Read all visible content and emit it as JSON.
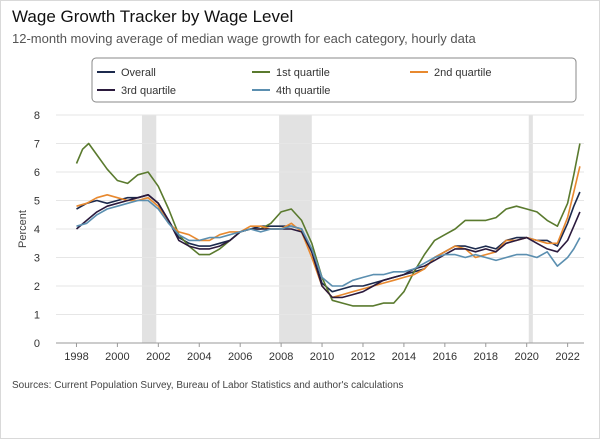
{
  "title": "Wage Growth Tracker by Wage Level",
  "subtitle": "12-month moving average of median wage growth for each category, hourly data",
  "source": "Sources: Current Population Survey, Bureau of Labor Statistics and author's calculations",
  "chart_data": {
    "type": "line",
    "title": "Wage Growth Tracker by Wage Level",
    "ylabel": "Percent",
    "xlabel": "",
    "xlim": [
      1997.0,
      2022.8
    ],
    "ylim": [
      0,
      8
    ],
    "x_ticks": [
      1998,
      2000,
      2002,
      2004,
      2006,
      2008,
      2010,
      2012,
      2014,
      2016,
      2018,
      2020,
      2022
    ],
    "y_ticks": [
      0,
      1,
      2,
      3,
      4,
      5,
      6,
      7,
      8
    ],
    "grid": true,
    "legend_position": "top",
    "recessions": [
      [
        2001.2,
        2001.9
      ],
      [
        2007.9,
        2009.5
      ],
      [
        2020.1,
        2020.3
      ]
    ],
    "recession_color": "#e2e2e2",
    "series": [
      {
        "name": "Overall",
        "color": "#1c2a4d",
        "points": [
          [
            1998,
            4.7
          ],
          [
            1998.5,
            4.9
          ],
          [
            1999,
            5.0
          ],
          [
            1999.5,
            4.9
          ],
          [
            2000,
            5.0
          ],
          [
            2000.5,
            5.1
          ],
          [
            2001,
            5.1
          ],
          [
            2001.5,
            5.2
          ],
          [
            2002,
            4.9
          ],
          [
            2002.5,
            4.3
          ],
          [
            2003,
            3.7
          ],
          [
            2003.5,
            3.5
          ],
          [
            2004,
            3.4
          ],
          [
            2004.5,
            3.4
          ],
          [
            2005,
            3.5
          ],
          [
            2005.5,
            3.6
          ],
          [
            2006,
            3.9
          ],
          [
            2006.5,
            4.0
          ],
          [
            2007,
            4.1
          ],
          [
            2007.5,
            4.1
          ],
          [
            2008,
            4.1
          ],
          [
            2008.5,
            4.1
          ],
          [
            2009,
            4.0
          ],
          [
            2009.5,
            3.2
          ],
          [
            2010,
            2.1
          ],
          [
            2010.5,
            1.8
          ],
          [
            2011,
            1.9
          ],
          [
            2011.5,
            2.0
          ],
          [
            2012,
            2.0
          ],
          [
            2012.5,
            2.1
          ],
          [
            2013,
            2.2
          ],
          [
            2013.5,
            2.3
          ],
          [
            2014,
            2.4
          ],
          [
            2014.5,
            2.5
          ],
          [
            2015,
            2.6
          ],
          [
            2015.5,
            3.0
          ],
          [
            2016,
            3.2
          ],
          [
            2016.5,
            3.4
          ],
          [
            2017,
            3.4
          ],
          [
            2017.5,
            3.3
          ],
          [
            2018,
            3.4
          ],
          [
            2018.5,
            3.3
          ],
          [
            2019,
            3.6
          ],
          [
            2019.5,
            3.7
          ],
          [
            2020,
            3.7
          ],
          [
            2020.5,
            3.6
          ],
          [
            2021,
            3.6
          ],
          [
            2021.5,
            3.4
          ],
          [
            2022,
            4.2
          ],
          [
            2022.3,
            4.8
          ],
          [
            2022.6,
            5.3
          ]
        ]
      },
      {
        "name": "1st quartile",
        "color": "#5a7a2e",
        "points": [
          [
            1998,
            6.3
          ],
          [
            1998.3,
            6.8
          ],
          [
            1998.6,
            7.0
          ],
          [
            1999,
            6.6
          ],
          [
            1999.5,
            6.1
          ],
          [
            2000,
            5.7
          ],
          [
            2000.5,
            5.6
          ],
          [
            2001,
            5.9
          ],
          [
            2001.5,
            6.0
          ],
          [
            2002,
            5.5
          ],
          [
            2002.5,
            4.7
          ],
          [
            2003,
            3.8
          ],
          [
            2003.5,
            3.4
          ],
          [
            2004,
            3.1
          ],
          [
            2004.5,
            3.1
          ],
          [
            2005,
            3.3
          ],
          [
            2005.5,
            3.6
          ],
          [
            2006,
            3.9
          ],
          [
            2006.5,
            4.0
          ],
          [
            2007,
            4.0
          ],
          [
            2007.5,
            4.2
          ],
          [
            2008,
            4.6
          ],
          [
            2008.5,
            4.7
          ],
          [
            2009,
            4.3
          ],
          [
            2009.5,
            3.5
          ],
          [
            2010,
            2.3
          ],
          [
            2010.5,
            1.5
          ],
          [
            2011,
            1.4
          ],
          [
            2011.5,
            1.3
          ],
          [
            2012,
            1.3
          ],
          [
            2012.5,
            1.3
          ],
          [
            2013,
            1.4
          ],
          [
            2013.5,
            1.4
          ],
          [
            2014,
            1.8
          ],
          [
            2014.5,
            2.5
          ],
          [
            2015,
            3.1
          ],
          [
            2015.5,
            3.6
          ],
          [
            2016,
            3.8
          ],
          [
            2016.5,
            4.0
          ],
          [
            2017,
            4.3
          ],
          [
            2017.5,
            4.3
          ],
          [
            2018,
            4.3
          ],
          [
            2018.5,
            4.4
          ],
          [
            2019,
            4.7
          ],
          [
            2019.5,
            4.8
          ],
          [
            2020,
            4.7
          ],
          [
            2020.5,
            4.6
          ],
          [
            2021,
            4.3
          ],
          [
            2021.5,
            4.1
          ],
          [
            2022,
            4.9
          ],
          [
            2022.3,
            5.9
          ],
          [
            2022.6,
            7.0
          ]
        ]
      },
      {
        "name": "2nd quartile",
        "color": "#e8892f",
        "points": [
          [
            1998,
            4.8
          ],
          [
            1998.5,
            4.9
          ],
          [
            1999,
            5.1
          ],
          [
            1999.5,
            5.2
          ],
          [
            2000,
            5.1
          ],
          [
            2000.5,
            5.0
          ],
          [
            2001,
            5.0
          ],
          [
            2001.5,
            5.1
          ],
          [
            2002,
            4.8
          ],
          [
            2002.5,
            4.2
          ],
          [
            2003,
            3.9
          ],
          [
            2003.5,
            3.8
          ],
          [
            2004,
            3.6
          ],
          [
            2004.5,
            3.6
          ],
          [
            2005,
            3.8
          ],
          [
            2005.5,
            3.9
          ],
          [
            2006,
            3.9
          ],
          [
            2006.5,
            4.1
          ],
          [
            2007,
            4.1
          ],
          [
            2007.5,
            4.0
          ],
          [
            2008,
            4.0
          ],
          [
            2008.5,
            4.2
          ],
          [
            2009,
            3.9
          ],
          [
            2009.5,
            3.0
          ],
          [
            2010,
            2.0
          ],
          [
            2010.5,
            1.6
          ],
          [
            2011,
            1.7
          ],
          [
            2011.5,
            1.8
          ],
          [
            2012,
            1.9
          ],
          [
            2012.5,
            2.0
          ],
          [
            2013,
            2.1
          ],
          [
            2013.5,
            2.2
          ],
          [
            2014,
            2.3
          ],
          [
            2014.5,
            2.4
          ],
          [
            2015,
            2.6
          ],
          [
            2015.5,
            3.0
          ],
          [
            2016,
            3.2
          ],
          [
            2016.5,
            3.4
          ],
          [
            2017,
            3.3
          ],
          [
            2017.5,
            3.0
          ],
          [
            2018,
            3.1
          ],
          [
            2018.5,
            3.2
          ],
          [
            2019,
            3.6
          ],
          [
            2019.5,
            3.6
          ],
          [
            2020,
            3.7
          ],
          [
            2020.5,
            3.6
          ],
          [
            2021,
            3.5
          ],
          [
            2021.5,
            3.5
          ],
          [
            2022,
            4.4
          ],
          [
            2022.3,
            5.3
          ],
          [
            2022.6,
            6.2
          ]
        ]
      },
      {
        "name": "3rd quartile",
        "color": "#2b1a3d",
        "points": [
          [
            1998,
            4.0
          ],
          [
            1998.5,
            4.3
          ],
          [
            1999,
            4.6
          ],
          [
            1999.5,
            4.8
          ],
          [
            2000,
            4.9
          ],
          [
            2000.5,
            5.0
          ],
          [
            2001,
            5.1
          ],
          [
            2001.5,
            5.2
          ],
          [
            2002,
            4.9
          ],
          [
            2002.5,
            4.3
          ],
          [
            2003,
            3.6
          ],
          [
            2003.5,
            3.4
          ],
          [
            2004,
            3.3
          ],
          [
            2004.5,
            3.3
          ],
          [
            2005,
            3.4
          ],
          [
            2005.5,
            3.6
          ],
          [
            2006,
            3.9
          ],
          [
            2006.5,
            4.0
          ],
          [
            2007,
            4.0
          ],
          [
            2007.5,
            4.0
          ],
          [
            2008,
            4.0
          ],
          [
            2008.5,
            4.0
          ],
          [
            2009,
            3.9
          ],
          [
            2009.5,
            3.2
          ],
          [
            2010,
            2.0
          ],
          [
            2010.5,
            1.6
          ],
          [
            2011,
            1.6
          ],
          [
            2011.5,
            1.7
          ],
          [
            2012,
            1.8
          ],
          [
            2012.5,
            2.0
          ],
          [
            2013,
            2.2
          ],
          [
            2013.5,
            2.3
          ],
          [
            2014,
            2.4
          ],
          [
            2014.5,
            2.6
          ],
          [
            2015,
            2.7
          ],
          [
            2015.5,
            2.9
          ],
          [
            2016,
            3.1
          ],
          [
            2016.5,
            3.3
          ],
          [
            2017,
            3.3
          ],
          [
            2017.5,
            3.2
          ],
          [
            2018,
            3.3
          ],
          [
            2018.5,
            3.2
          ],
          [
            2019,
            3.5
          ],
          [
            2019.5,
            3.6
          ],
          [
            2020,
            3.7
          ],
          [
            2020.5,
            3.5
          ],
          [
            2021,
            3.3
          ],
          [
            2021.5,
            3.2
          ],
          [
            2022,
            3.6
          ],
          [
            2022.3,
            4.1
          ],
          [
            2022.6,
            4.6
          ]
        ]
      },
      {
        "name": "4th quartile",
        "color": "#5b8fb0",
        "points": [
          [
            1998,
            4.1
          ],
          [
            1998.5,
            4.2
          ],
          [
            1999,
            4.5
          ],
          [
            1999.5,
            4.7
          ],
          [
            2000,
            4.8
          ],
          [
            2000.5,
            4.9
          ],
          [
            2001,
            5.0
          ],
          [
            2001.5,
            5.0
          ],
          [
            2002,
            4.7
          ],
          [
            2002.5,
            4.2
          ],
          [
            2003,
            3.8
          ],
          [
            2003.5,
            3.6
          ],
          [
            2004,
            3.6
          ],
          [
            2004.5,
            3.7
          ],
          [
            2005,
            3.7
          ],
          [
            2005.5,
            3.8
          ],
          [
            2006,
            3.9
          ],
          [
            2006.5,
            4.0
          ],
          [
            2007,
            3.9
          ],
          [
            2007.5,
            4.0
          ],
          [
            2008,
            4.0
          ],
          [
            2008.5,
            4.1
          ],
          [
            2009,
            4.0
          ],
          [
            2009.5,
            3.3
          ],
          [
            2010,
            2.3
          ],
          [
            2010.5,
            2.0
          ],
          [
            2011,
            2.0
          ],
          [
            2011.5,
            2.2
          ],
          [
            2012,
            2.3
          ],
          [
            2012.5,
            2.4
          ],
          [
            2013,
            2.4
          ],
          [
            2013.5,
            2.5
          ],
          [
            2014,
            2.5
          ],
          [
            2014.5,
            2.6
          ],
          [
            2015,
            2.8
          ],
          [
            2015.5,
            3.0
          ],
          [
            2016,
            3.1
          ],
          [
            2016.5,
            3.1
          ],
          [
            2017,
            3.0
          ],
          [
            2017.5,
            3.1
          ],
          [
            2018,
            3.0
          ],
          [
            2018.5,
            2.9
          ],
          [
            2019,
            3.0
          ],
          [
            2019.5,
            3.1
          ],
          [
            2020,
            3.1
          ],
          [
            2020.5,
            3.0
          ],
          [
            2021,
            3.2
          ],
          [
            2021.5,
            2.7
          ],
          [
            2022,
            3.0
          ],
          [
            2022.3,
            3.3
          ],
          [
            2022.6,
            3.7
          ]
        ]
      }
    ]
  }
}
